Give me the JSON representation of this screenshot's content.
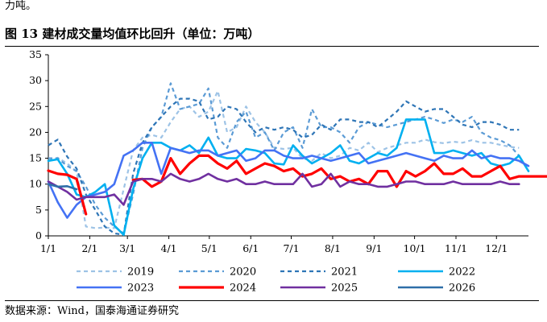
{
  "header": {
    "intro_text": "力吨。",
    "figure_number": "图 13",
    "figure_title": "建材成交量均值环比回升（单位：万吨）"
  },
  "source_note": "数据来源：Wind，国泰海通证券研究",
  "chart_data": {
    "type": "line",
    "title": "建材成交量均值环比回升（单位：万吨）",
    "unit": "万吨",
    "xlabel": "",
    "ylabel": "",
    "ylim": [
      0,
      35
    ],
    "y_ticks": [
      "0",
      "5",
      "10",
      "15",
      "20",
      "25",
      "30",
      "35"
    ],
    "x_domain": [
      1,
      52
    ],
    "x_ticks": [
      {
        "label": "1/1",
        "x": 1
      },
      {
        "label": "2/1",
        "x": 5.4
      },
      {
        "label": "3/1",
        "x": 9.4
      },
      {
        "label": "4/1",
        "x": 13.8
      },
      {
        "label": "5/1",
        "x": 18.1
      },
      {
        "label": "6/1",
        "x": 22.5
      },
      {
        "label": "7/1",
        "x": 26.8
      },
      {
        "label": "8/1",
        "x": 31.2
      },
      {
        "label": "9/1",
        "x": 35.6
      },
      {
        "label": "10/1",
        "x": 39.9
      },
      {
        "label": "11/1",
        "x": 44.3
      },
      {
        "label": "12/1",
        "x": 48.6
      }
    ],
    "grid": false,
    "legend_position": "bottom",
    "series": [
      {
        "name": "2019",
        "color": "#9dc3e6",
        "dash": "5,4",
        "width": 2.2,
        "values": [
          14.5,
          15.1,
          14,
          12.4,
          1.8,
          1.5,
          1.6,
          1.5,
          9,
          16.5,
          19,
          19.5,
          19,
          22,
          24.5,
          25,
          23,
          24,
          28,
          20,
          21,
          25,
          22,
          20,
          17,
          16.8,
          17,
          15,
          14.5,
          16,
          15,
          15.5,
          17,
          16.5,
          18,
          16.2,
          17,
          17.5,
          18,
          18,
          18.6,
          18.1,
          17.9,
          18.2,
          18,
          18.5,
          18,
          18,
          17.6,
          17.2,
          17
        ]
      },
      {
        "name": "2020",
        "color": "#5b9bd5",
        "dash": "5,4",
        "width": 2.2,
        "values": [
          15,
          15,
          13.5,
          12.5,
          9.5,
          6,
          3.5,
          1.8,
          0.5,
          8,
          17,
          21,
          23,
          29.5,
          24.5,
          25,
          25.5,
          28.5,
          19,
          17,
          22,
          24,
          19,
          20,
          16.5,
          20,
          21,
          17,
          24.5,
          21,
          21,
          20,
          18,
          21,
          22,
          21.5,
          21,
          21.5,
          22,
          22.5,
          23,
          22.5,
          21.8,
          22.5,
          22,
          23,
          20,
          19,
          18.5,
          17.5,
          15.5
        ]
      },
      {
        "name": "2021",
        "color": "#2e75b6",
        "dash": "5,4",
        "width": 2.2,
        "values": [
          17.5,
          18.6,
          15.3,
          13,
          8,
          5,
          1.8,
          0.5,
          0.2,
          12,
          18,
          21,
          23,
          25,
          26.5,
          26.5,
          26,
          22.5,
          23,
          25,
          24.5,
          22,
          20,
          21,
          20.5,
          21,
          20.5,
          19,
          19.5,
          21.5,
          20.5,
          22.5,
          22.5,
          22,
          22,
          21,
          22.5,
          24,
          26,
          25,
          24,
          24.5,
          24.5,
          23,
          21.5,
          21,
          22,
          22,
          21.5,
          20.5,
          20.5
        ]
      },
      {
        "name": "2022",
        "color": "#00b0f0",
        "dash": "",
        "width": 2.6,
        "values": [
          14.5,
          14.8,
          12,
          8,
          7.5,
          8.5,
          10,
          2,
          0.2,
          9,
          15,
          18,
          18,
          17,
          16.5,
          17.5,
          16,
          19,
          15.5,
          15,
          15,
          16.8,
          16.5,
          16,
          14,
          13.8,
          17.5,
          15.5,
          14,
          15,
          16,
          17.5,
          14.5,
          14,
          15,
          16,
          15.5,
          17,
          22.5,
          22.5,
          22.5,
          16,
          16,
          16.5,
          16,
          15.5,
          16,
          14,
          13.5,
          14,
          15.5,
          12.5
        ]
      },
      {
        "name": "2023",
        "color": "#4472f4",
        "dash": "",
        "width": 2.6,
        "values": [
          10.5,
          6.5,
          3.5,
          6,
          7.5,
          8,
          8.5,
          10,
          15.5,
          16.5,
          18,
          18,
          12,
          17,
          16.5,
          16,
          16.5,
          16.5,
          15.5,
          16,
          16.5,
          14.5,
          15,
          16.5,
          16.5,
          15.5,
          15,
          15,
          15.5,
          15,
          14.5,
          15,
          15.5,
          16,
          14,
          14.5,
          15,
          15.5,
          16,
          15.5,
          15,
          14.5,
          15.5,
          15,
          15,
          16.5,
          15,
          15.5,
          15,
          15,
          14.5,
          13.5
        ]
      },
      {
        "name": "2024",
        "color": "#ff0000",
        "dash": "",
        "width": 3.2,
        "values": [
          12.6,
          12,
          11.8,
          11,
          4.2
        ]
      },
      {
        "name": "2024b",
        "legend": false,
        "color": "#ff0000",
        "dash": "",
        "width": 3.2,
        "x_start": 10,
        "values": [
          10.8,
          11,
          9.5,
          10.5,
          15,
          12,
          14,
          15.5,
          15.5,
          14,
          13,
          14.5,
          12,
          13,
          14,
          13.5,
          12.5,
          13,
          11.5,
          12,
          13,
          11,
          11.5,
          10.5,
          11,
          10,
          12.5,
          12.5,
          9.5,
          12.5,
          11.5,
          12.5,
          14,
          12,
          12,
          13,
          11.5,
          11.5,
          12.5,
          13.5,
          11,
          11.5,
          11.5,
          11.5,
          11.5,
          11.5,
          11
        ]
      },
      {
        "name": "2025",
        "color": "#7030a0",
        "dash": "",
        "width": 2.6,
        "values": [
          10.5,
          9.5,
          8.5,
          7,
          7.5,
          7.5,
          7.5,
          8,
          6,
          10.5,
          11,
          11,
          10.5,
          12,
          11,
          10.5,
          11,
          12,
          11,
          10.5,
          11,
          10,
          10,
          10.5,
          10,
          10,
          10,
          12,
          9.5,
          10,
          12,
          9.5,
          10.5,
          10,
          10,
          9.5,
          9.5,
          10,
          10.5,
          10.5,
          10,
          10,
          10,
          10.5,
          10,
          10,
          10,
          10,
          10.5,
          10,
          10
        ]
      },
      {
        "name": "2026",
        "color": "#2e6ea8",
        "dash": "",
        "width": 2.6,
        "values": [
          10,
          9.5,
          9.6,
          9
        ]
      }
    ]
  }
}
